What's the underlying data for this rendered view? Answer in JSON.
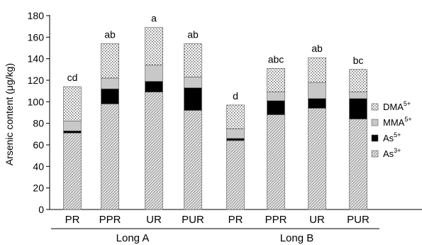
{
  "chart_data": {
    "type": "bar",
    "stacked": true,
    "ylabel": "Arsenic content (μg/kg)",
    "ylim": [
      0,
      180
    ],
    "yticks": [
      0,
      20,
      40,
      60,
      80,
      100,
      120,
      140,
      160,
      180
    ],
    "categories": [
      "PR",
      "PPR",
      "UR",
      "PUR",
      "PR",
      "PPR",
      "UR",
      "PUR"
    ],
    "groups": [
      {
        "label": "Long A",
        "start": 0,
        "end": 3
      },
      {
        "label": "Long B",
        "start": 4,
        "end": 7
      }
    ],
    "letters": [
      "cd",
      "ab",
      "a",
      "ab",
      "d",
      "abc",
      "ab",
      "bc"
    ],
    "series": [
      {
        "name": "As",
        "sup": "3+",
        "pattern": "hatch-as3",
        "values": [
          71,
          98,
          109,
          92,
          64,
          88,
          94,
          84
        ]
      },
      {
        "name": "As",
        "sup": "5+",
        "pattern": "solid-black",
        "values": [
          2,
          14,
          10,
          21,
          2,
          13,
          9,
          19
        ]
      },
      {
        "name": "MMA",
        "sup": "5+",
        "pattern": "fill-gray",
        "values": [
          9,
          10,
          15,
          10,
          9,
          8,
          15,
          6
        ]
      },
      {
        "name": "DMA",
        "sup": "5+",
        "pattern": "dots-dma",
        "values": [
          32,
          32,
          35,
          31,
          22,
          22,
          23,
          21
        ]
      }
    ],
    "legend_position": "right",
    "legend_order": [
      3,
      2,
      1,
      0
    ],
    "grid": false
  }
}
